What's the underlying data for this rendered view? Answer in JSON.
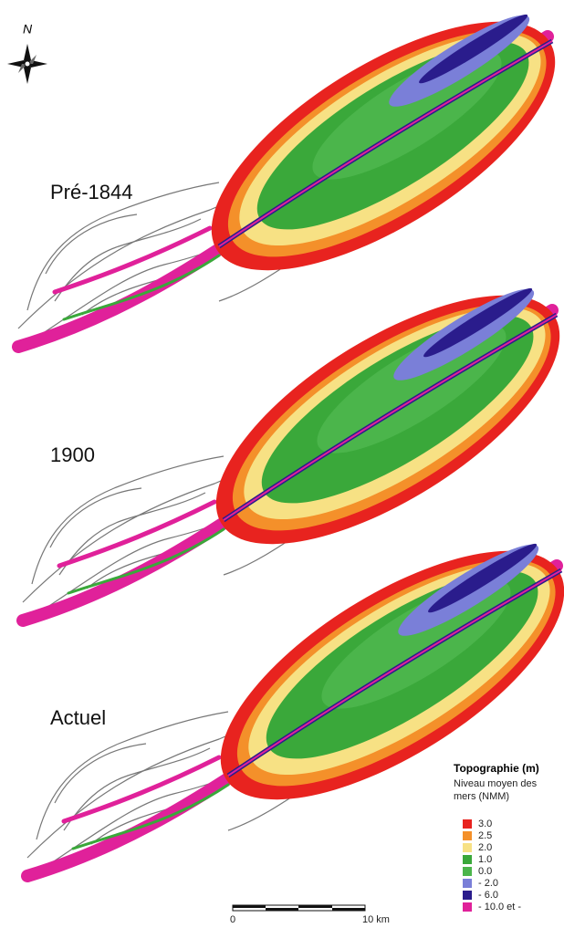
{
  "compass": {
    "label": "N"
  },
  "panels": [
    {
      "label": "Pré-1844"
    },
    {
      "label": "1900"
    },
    {
      "label": "Actuel"
    }
  ],
  "legend": {
    "title": "Topographie (m)",
    "subtitle": [
      "Niveau moyen des",
      "mers (NMM)"
    ],
    "items": [
      {
        "label": "3.0",
        "color": "#e8231f"
      },
      {
        "label": "2.5",
        "color": "#f4902a"
      },
      {
        "label": "2.0",
        "color": "#f7e184"
      },
      {
        "label": "1.0",
        "color": "#3aa83a"
      },
      {
        "label": "0.0",
        "color": "#4bb54b"
      },
      {
        "label": "- 2.0",
        "color": "#7a7fd8"
      },
      {
        "label": "- 6.0",
        "color": "#2a1c8c"
      },
      {
        "label": "- 10.0 et -",
        "color": "#e0219a"
      }
    ]
  },
  "scale_bar": {
    "start": "0",
    "end": "10 km"
  }
}
